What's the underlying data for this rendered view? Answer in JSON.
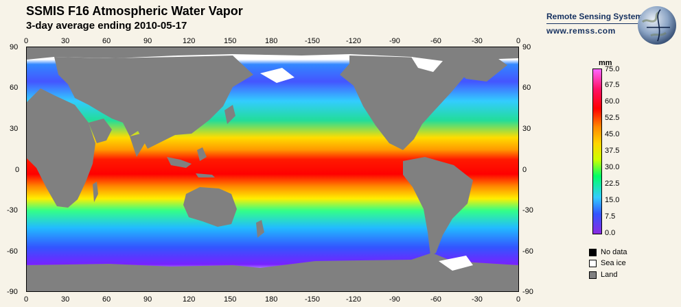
{
  "header": {
    "title": "SSMIS F16 Atmospheric Water Vapor",
    "subtitle": "3-day average ending 2010-05-17"
  },
  "brand": {
    "name": "Remote Sensing Systems",
    "url": "www.remss.com"
  },
  "axes": {
    "x_labels": [
      "0",
      "30",
      "60",
      "90",
      "120",
      "150",
      "180",
      "-150",
      "-120",
      "-90",
      "-60",
      "-30",
      "0"
    ],
    "y_labels": [
      "90",
      "60",
      "30",
      "0",
      "-30",
      "-60",
      "-90"
    ]
  },
  "colorbar": {
    "unit": "mm",
    "labels": [
      "75.0",
      "67.5",
      "60.0",
      "52.5",
      "45.0",
      "37.5",
      "30.0",
      "22.5",
      "15.0",
      "7.5",
      "0.0"
    ]
  },
  "legend": [
    {
      "label": "No data",
      "color": "#000000"
    },
    {
      "label": "Sea ice",
      "color": "#ffffff"
    },
    {
      "label": "Land",
      "color": "#808080"
    }
  ],
  "colors": {
    "land": "#808080",
    "sea_ice": "#ffffff",
    "background": "#f7f3e8"
  }
}
